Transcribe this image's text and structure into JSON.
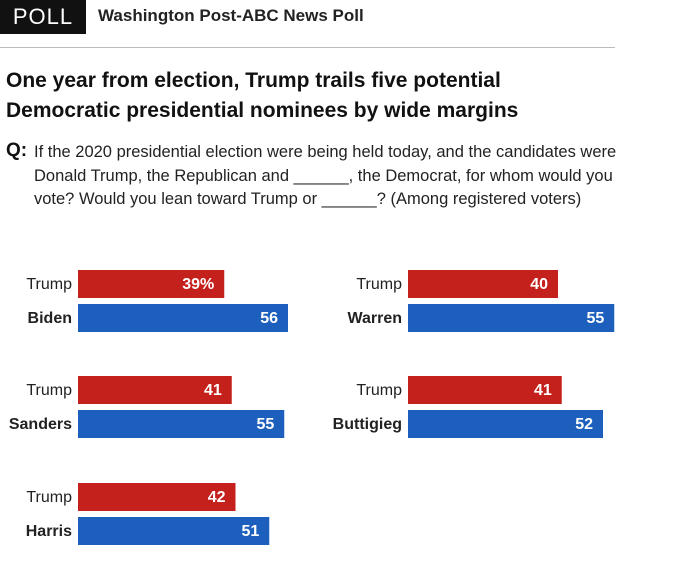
{
  "header": {
    "badge": "POLL",
    "source": "Washington Post-ABC News Poll"
  },
  "title": "One year from election, Trump trails five potential Democratic presidential nominees by wide margins",
  "question": {
    "label": "Q:",
    "text": "If the 2020 presidential election were being held today, and the candidates were Donald Trump, the Republican and ______, the Democrat, for whom would you vote? Would you lean toward Trump or ______? (Among registered voters)"
  },
  "chart_data": [
    {
      "type": "bar",
      "categories": [
        "Trump",
        "Biden"
      ],
      "values": [
        39,
        56
      ],
      "value_labels": [
        "39%",
        "56"
      ],
      "colors": [
        "#c4201c",
        "#1d5fbd"
      ]
    },
    {
      "type": "bar",
      "categories": [
        "Trump",
        "Warren"
      ],
      "values": [
        40,
        55
      ],
      "colors": [
        "#c4201c",
        "#1d5fbd"
      ]
    },
    {
      "type": "bar",
      "categories": [
        "Trump",
        "Sanders"
      ],
      "values": [
        41,
        55
      ],
      "colors": [
        "#c4201c",
        "#1d5fbd"
      ]
    },
    {
      "type": "bar",
      "categories": [
        "Trump",
        "Buttigieg"
      ],
      "values": [
        41,
        52
      ],
      "colors": [
        "#c4201c",
        "#1d5fbd"
      ]
    },
    {
      "type": "bar",
      "categories": [
        "Trump",
        "Harris"
      ],
      "values": [
        42,
        51
      ],
      "colors": [
        "#c4201c",
        "#1d5fbd"
      ]
    }
  ]
}
